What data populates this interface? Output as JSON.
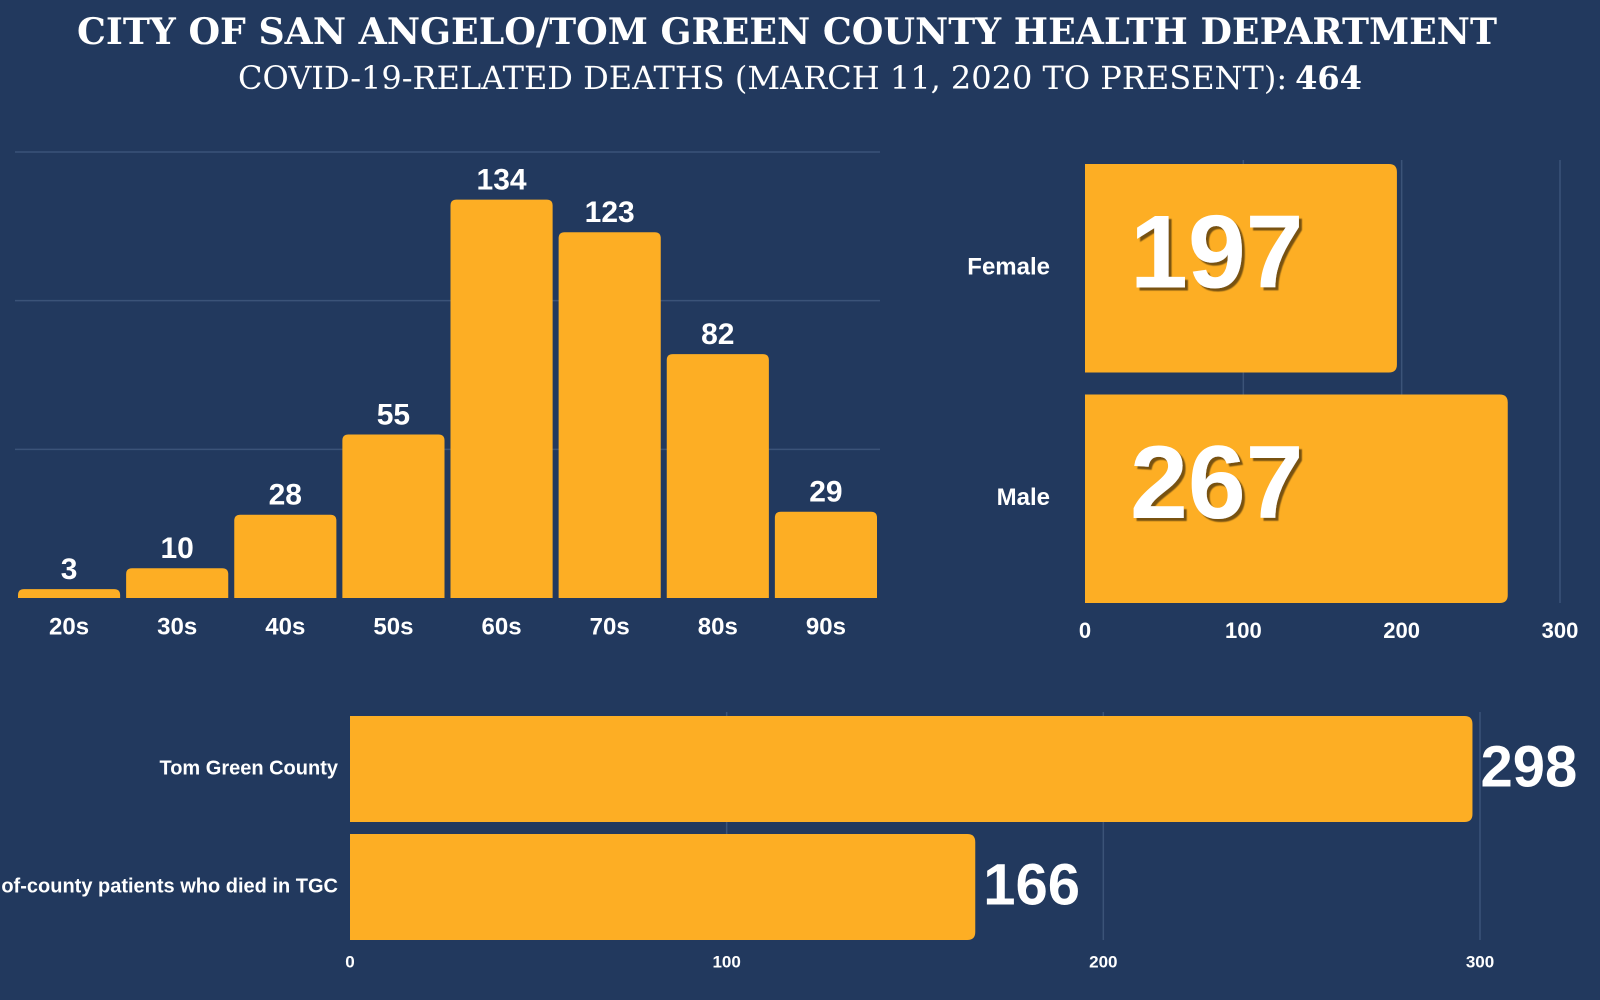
{
  "header": {
    "title": "CITY OF SAN ANGELO/TOM GREEN COUNTY HEALTH DEPARTMENT",
    "subtitle": "COVID-19-RELATED DEATHS (MARCH 11, 2020 TO PRESENT):",
    "total": 464
  },
  "chart_data": [
    {
      "type": "bar",
      "categories": [
        "20s",
        "30s",
        "40s",
        "50s",
        "60s",
        "70s",
        "80s",
        "90s"
      ],
      "values": [
        3,
        10,
        28,
        55,
        134,
        123,
        82,
        29
      ],
      "color": "#fdae24",
      "ylim": [
        0,
        150
      ],
      "gridlines": [
        50,
        100,
        150
      ],
      "data_labels": true
    },
    {
      "type": "bar",
      "horizontal": true,
      "categories": [
        "Female",
        "Male"
      ],
      "values": [
        197,
        267
      ],
      "color": "#fdae24",
      "xlim": [
        0,
        300
      ],
      "xticks": [
        0,
        100,
        200,
        300
      ],
      "grid": true,
      "data_labels": true
    },
    {
      "type": "bar",
      "horizontal": true,
      "categories": [
        "Tom Green County",
        "of-county patients who died in TGC"
      ],
      "values": [
        298,
        166
      ],
      "color": "#fdae24",
      "xlim": [
        0,
        300
      ],
      "xticks": [
        0,
        100,
        200,
        300
      ],
      "grid": true,
      "data_labels": true
    }
  ]
}
